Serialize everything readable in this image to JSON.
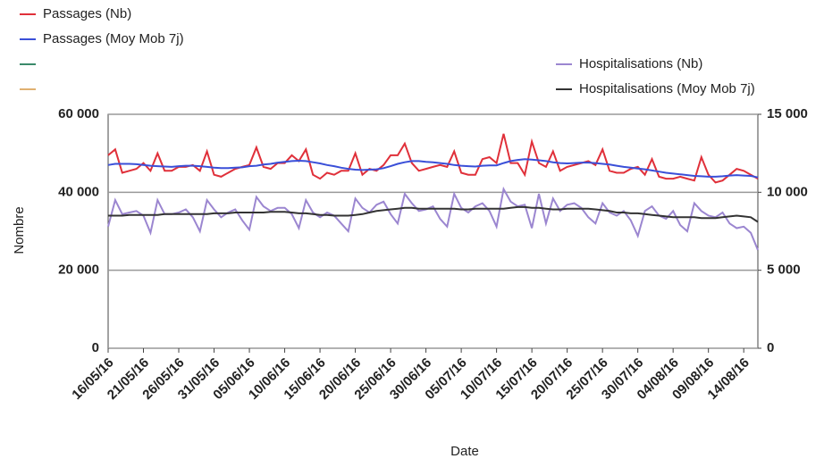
{
  "chart_data": {
    "type": "line",
    "x_label": "Date",
    "y_label": "Nombre",
    "categories": [
      "16/05/16",
      null,
      null,
      null,
      null,
      "21/05/16",
      null,
      null,
      null,
      null,
      "26/05/16",
      null,
      null,
      null,
      null,
      "31/05/16",
      null,
      null,
      null,
      null,
      "05/06/16",
      null,
      null,
      null,
      null,
      "10/06/16",
      null,
      null,
      null,
      null,
      "15/06/16",
      null,
      null,
      null,
      null,
      "20/06/16",
      null,
      null,
      null,
      null,
      "25/06/16",
      null,
      null,
      null,
      null,
      "30/06/16",
      null,
      null,
      null,
      null,
      "05/07/16",
      null,
      null,
      null,
      null,
      "10/07/16",
      null,
      null,
      null,
      null,
      "15/07/16",
      null,
      null,
      null,
      null,
      "20/07/16",
      null,
      null,
      null,
      null,
      "25/07/16",
      null,
      null,
      null,
      null,
      "30/07/16",
      null,
      null,
      null,
      null,
      "04/08/16",
      null,
      null,
      null,
      null,
      "09/08/16",
      null,
      null,
      null,
      null,
      "14/08/16",
      null,
      null
    ],
    "ylim": [
      0,
      60000
    ],
    "yticks": [
      0,
      {
        "value": 20000,
        "label": "20 000"
      },
      {
        "value": 40000,
        "label": "40 000"
      },
      {
        "value": 60000,
        "label": "60 000"
      }
    ],
    "y2lim": [
      0,
      15000
    ],
    "y2ticks": [
      0,
      {
        "value": 5000,
        "label": "5 000"
      },
      {
        "value": 10000,
        "label": "10 000"
      },
      {
        "value": 15000,
        "label": "15 000"
      }
    ],
    "grid": true,
    "series": [
      {
        "name": "Passages (Nb)",
        "color": "#e0303a",
        "values": [
          49500,
          51000,
          45000,
          45500,
          46000,
          47500,
          45500,
          50000,
          45500,
          45500,
          46500,
          46500,
          47000,
          45500,
          50500,
          44500,
          44000,
          45000,
          46000,
          46500,
          47000,
          51500,
          46500,
          46000,
          47500,
          47500,
          49500,
          48000,
          51000,
          44500,
          43500,
          45000,
          44500,
          45500,
          45500,
          50000,
          44500,
          46000,
          45500,
          47000,
          49500,
          49500,
          52500,
          47500,
          45500,
          46000,
          46500,
          47000,
          46500,
          50500,
          45000,
          44500,
          44500,
          48500,
          49000,
          47500,
          55000,
          47500,
          47500,
          44500,
          53000,
          47500,
          46500,
          50500,
          45500,
          46500,
          47000,
          47500,
          48000,
          47000,
          51000,
          45500,
          45000,
          45000,
          46000,
          46500,
          44500,
          48500,
          44000,
          43500,
          43500,
          44000,
          43500,
          43000,
          49000,
          44500,
          42500,
          43000,
          44500,
          46000,
          45500,
          44500,
          43500
        ]
      },
      {
        "name": "Passages (Moy Mob 7j)",
        "color": "#3a4fd8",
        "values": [
          47000,
          47300,
          47300,
          47300,
          47200,
          47000,
          46800,
          46700,
          46600,
          46500,
          46700,
          46800,
          46800,
          46700,
          46500,
          46300,
          46200,
          46200,
          46300,
          46400,
          46700,
          46800,
          47100,
          47300,
          47600,
          47800,
          48000,
          48100,
          48000,
          47700,
          47400,
          47000,
          46700,
          46300,
          46000,
          45800,
          45700,
          45800,
          45900,
          46200,
          46700,
          47300,
          47700,
          48000,
          48000,
          47800,
          47700,
          47500,
          47300,
          47000,
          46800,
          46700,
          46600,
          46800,
          46900,
          46900,
          47500,
          48000,
          48300,
          48500,
          48400,
          48200,
          48000,
          47700,
          47500,
          47400,
          47500,
          47600,
          47600,
          47500,
          47300,
          47100,
          46800,
          46500,
          46300,
          46100,
          45900,
          45600,
          45300,
          45000,
          44800,
          44600,
          44400,
          44200,
          44100,
          44000,
          44000,
          44100,
          44300,
          44400,
          44300,
          44200,
          43800
        ]
      },
      {
        "name": "Hospitalisations (Nb)",
        "color": "#9b86d0",
        "axis": "y2",
        "values": [
          7800,
          9500,
          8600,
          8700,
          8800,
          8500,
          7400,
          9500,
          8600,
          8600,
          8700,
          8900,
          8400,
          7500,
          9500,
          8900,
          8400,
          8700,
          8900,
          8200,
          7600,
          9700,
          9100,
          8800,
          9000,
          9000,
          8600,
          7700,
          9500,
          8700,
          8400,
          8700,
          8500,
          8000,
          7500,
          9600,
          9000,
          8700,
          9200,
          9400,
          8600,
          8000,
          9900,
          9300,
          8800,
          8900,
          9100,
          8300,
          7800,
          9900,
          9000,
          8700,
          9100,
          9300,
          8800,
          7800,
          10200,
          9400,
          9100,
          9200,
          7700,
          9900,
          8000,
          9600,
          8800,
          9200,
          9300,
          9000,
          8400,
          8000,
          9300,
          8700,
          8500,
          8800,
          8200,
          7200,
          8800,
          9100,
          8500,
          8300,
          8800,
          7900,
          7500,
          9300,
          8800,
          8500,
          8400,
          8700,
          8000,
          7700,
          7800,
          7400,
          6300
        ]
      },
      {
        "name": "Hospitalisations (Moy Mob 7j)",
        "color": "#333333",
        "axis": "y2",
        "values": [
          8500,
          8500,
          8500,
          8550,
          8550,
          8550,
          8550,
          8550,
          8600,
          8600,
          8600,
          8600,
          8600,
          8600,
          8600,
          8650,
          8650,
          8650,
          8700,
          8700,
          8700,
          8700,
          8700,
          8750,
          8750,
          8750,
          8700,
          8650,
          8650,
          8600,
          8550,
          8550,
          8500,
          8500,
          8500,
          8550,
          8600,
          8700,
          8800,
          8850,
          8900,
          8950,
          9000,
          9000,
          8950,
          8950,
          8950,
          8950,
          8950,
          8950,
          8900,
          8900,
          8950,
          8950,
          8950,
          8950,
          8950,
          9000,
          9050,
          9050,
          9000,
          9000,
          8950,
          8900,
          8900,
          8950,
          8950,
          8950,
          8950,
          8900,
          8850,
          8800,
          8700,
          8700,
          8650,
          8650,
          8600,
          8550,
          8500,
          8450,
          8400,
          8400,
          8400,
          8400,
          8350,
          8350,
          8350,
          8400,
          8450,
          8500,
          8450,
          8400,
          8100
        ]
      }
    ]
  }
}
